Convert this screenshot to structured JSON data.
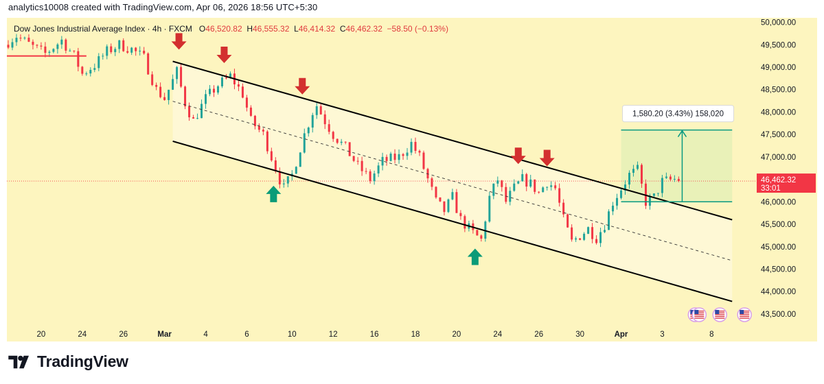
{
  "header": {
    "credit": "analytics10008 created with TradingView.com, Apr 06, 2026 18:56 UTC+5:30"
  },
  "legend": {
    "symbol": "Dow Jones Industrial Average Index · 4h · FXCM",
    "o_label": "O",
    "o_value": "46,520.82",
    "h_label": "H",
    "h_value": "46,555.32",
    "l_label": "L",
    "l_value": "46,414.32",
    "c_label": "C",
    "c_value": "46,462.32",
    "change": "−58.50 (−0.13%)"
  },
  "brand": {
    "name": "TradingView",
    "logo_icon": "tradingview-logo-icon"
  },
  "colors": {
    "background": "#fdf5bf",
    "up": "#22a39a",
    "down": "#f23645",
    "arrow_down": "#d32f2f",
    "arrow_up": "#0a9b78",
    "measure": "#089981",
    "channel": "#000000",
    "resistance": "#f23645"
  },
  "chart_data": {
    "type": "candlestick",
    "title": "Dow Jones Industrial Average Index · 4h · FXCM",
    "timeframe": "4h",
    "ylim": [
      43300,
      50100
    ],
    "y_ticks": [
      43500,
      44000,
      44500,
      45000,
      45500,
      46000,
      46500,
      47000,
      47500,
      48000,
      48500,
      49000,
      49500,
      50000
    ],
    "y_tick_labels": [
      "43,500.00",
      "44,000.00",
      "44,500.00",
      "45,000.00",
      "45,500.00",
      "46,000.00",
      "46,500.00",
      "47,000.00",
      "47,500.00",
      "48,000.00",
      "48,500.00",
      "49,000.00",
      "49,500.00",
      "50,000.00"
    ],
    "x_ticks": [
      {
        "label": "20",
        "bar": 8,
        "month": false
      },
      {
        "label": "24",
        "bar": 18,
        "month": false
      },
      {
        "label": "26",
        "bar": 28,
        "month": false
      },
      {
        "label": "Mar",
        "bar": 38,
        "month": true
      },
      {
        "label": "4",
        "bar": 48,
        "month": false
      },
      {
        "label": "6",
        "bar": 58,
        "month": false
      },
      {
        "label": "10",
        "bar": 69,
        "month": false
      },
      {
        "label": "12",
        "bar": 79,
        "month": false
      },
      {
        "label": "16",
        "bar": 89,
        "month": false
      },
      {
        "label": "18",
        "bar": 99,
        "month": false
      },
      {
        "label": "20",
        "bar": 109,
        "month": false
      },
      {
        "label": "24",
        "bar": 119,
        "month": false
      },
      {
        "label": "26",
        "bar": 129,
        "month": false
      },
      {
        "label": "30",
        "bar": 139,
        "month": false
      },
      {
        "label": "Apr",
        "bar": 149,
        "month": true
      },
      {
        "label": "3",
        "bar": 159,
        "month": false
      },
      {
        "label": "8",
        "bar": 171,
        "month": false
      }
    ],
    "total_bars": 176,
    "anchors": [
      [
        0,
        49500
      ],
      [
        3,
        49700
      ],
      [
        7,
        49450
      ],
      [
        10,
        49300
      ],
      [
        14,
        49600
      ],
      [
        17,
        49250
      ],
      [
        19,
        48850
      ],
      [
        22,
        49050
      ],
      [
        25,
        49350
      ],
      [
        28,
        49500
      ],
      [
        31,
        49400
      ],
      [
        34,
        49200
      ],
      [
        37,
        48500
      ],
      [
        39,
        48300
      ],
      [
        42,
        48900
      ],
      [
        44,
        48200
      ],
      [
        46,
        47800
      ],
      [
        49,
        48300
      ],
      [
        52,
        48600
      ],
      [
        55,
        48800
      ],
      [
        58,
        48400
      ],
      [
        60,
        47800
      ],
      [
        63,
        47500
      ],
      [
        65,
        47000
      ],
      [
        67,
        46500
      ],
      [
        68,
        46300
      ],
      [
        70,
        46600
      ],
      [
        72,
        47200
      ],
      [
        73,
        47500
      ],
      [
        75,
        48000
      ],
      [
        76,
        48150
      ],
      [
        78,
        47800
      ],
      [
        80,
        47500
      ],
      [
        83,
        47200
      ],
      [
        86,
        46800
      ],
      [
        89,
        46500
      ],
      [
        92,
        46900
      ],
      [
        96,
        47000
      ],
      [
        99,
        47300
      ],
      [
        101,
        47000
      ],
      [
        103,
        46500
      ],
      [
        105,
        46000
      ],
      [
        107,
        45800
      ],
      [
        109,
        46100
      ],
      [
        111,
        45600
      ],
      [
        114,
        45300
      ],
      [
        116,
        45150
      ],
      [
        118,
        46100
      ],
      [
        120,
        46500
      ],
      [
        122,
        46000
      ],
      [
        124,
        46300
      ],
      [
        126,
        46500
      ],
      [
        128,
        46400
      ],
      [
        130,
        46200
      ],
      [
        132,
        46450
      ],
      [
        134,
        46300
      ],
      [
        136,
        45600
      ],
      [
        138,
        45100
      ],
      [
        140,
        45250
      ],
      [
        142,
        45400
      ],
      [
        144,
        45200
      ],
      [
        146,
        45500
      ],
      [
        148,
        46000
      ],
      [
        150,
        46300
      ],
      [
        152,
        46600
      ],
      [
        154,
        46700
      ],
      [
        156,
        46000
      ],
      [
        158,
        46100
      ],
      [
        160,
        46450
      ],
      [
        163,
        46500
      ]
    ],
    "price_line": {
      "value": 46462.32,
      "label": "46,462.32",
      "countdown": "33:01"
    },
    "channel": {
      "upper": {
        "bar1": 40,
        "price1": 49130,
        "bar2": 176,
        "price2": 45600
      },
      "lower": {
        "bar1": 40,
        "price1": 47350,
        "bar2": 176,
        "price2": 43780
      },
      "mid": {
        "bar1": 40,
        "price1": 48240,
        "bar2": 176,
        "price2": 44690
      }
    },
    "resistance_line": {
      "bar1": -0.5,
      "bar2": 19,
      "price": 49250
    },
    "down_arrows": [
      {
        "bar": 41.5,
        "price": 49300
      },
      {
        "bar": 52.5,
        "price": 49000
      },
      {
        "bar": 71.5,
        "price": 48300
      },
      {
        "bar": 124,
        "price": 46750
      },
      {
        "bar": 131,
        "price": 46700
      }
    ],
    "up_arrows": [
      {
        "bar": 64.5,
        "price": 46450
      },
      {
        "bar": 113.5,
        "price": 45050
      }
    ],
    "measure": {
      "bar1": 149,
      "bar2": 176,
      "low": 46000,
      "high": 47600,
      "label": "1,580.20 (3.43%) 158,020"
    },
    "event_icons": [
      {
        "bar": 167,
        "name": "us-flag-icon"
      },
      {
        "bar": 168,
        "name": "us-flag-icon"
      },
      {
        "bar": 173,
        "name": "us-flag-icon"
      },
      {
        "bar": 179,
        "name": "us-flag-icon"
      }
    ]
  }
}
